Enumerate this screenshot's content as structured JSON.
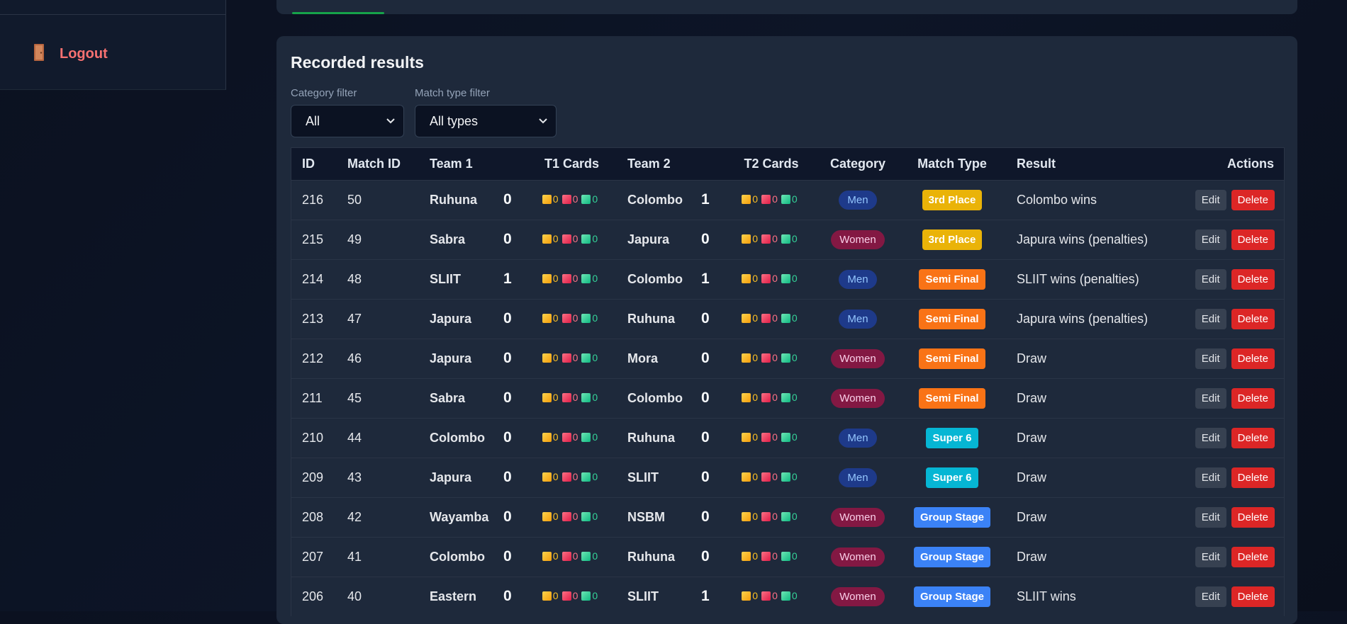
{
  "sidebar": {
    "logout_label": "Logout"
  },
  "results": {
    "title": "Recorded results",
    "category_filter": {
      "label": "Category filter",
      "value": "All"
    },
    "match_type_filter": {
      "label": "Match type filter",
      "value": "All types"
    },
    "columns": {
      "id": "ID",
      "match_id": "Match ID",
      "team1": "Team 1",
      "t1_cards": "T1 Cards",
      "team2": "Team 2",
      "t2_cards": "T2 Cards",
      "category": "Category",
      "match_type": "Match Type",
      "result": "Result",
      "actions": "Actions"
    },
    "edit_label": "Edit",
    "delete_label": "Delete",
    "rows": [
      {
        "id": "216",
        "match_id": "50",
        "team1": "Ruhuna",
        "score1": "0",
        "t1_yellow": "0",
        "t1_red": "0",
        "t1_green": "0",
        "team2": "Colombo",
        "score2": "1",
        "t2_yellow": "0",
        "t2_red": "0",
        "t2_green": "0",
        "category": "Men",
        "match_type": "3rd Place",
        "result": "Colombo wins"
      },
      {
        "id": "215",
        "match_id": "49",
        "team1": "Sabra",
        "score1": "0",
        "t1_yellow": "0",
        "t1_red": "0",
        "t1_green": "0",
        "team2": "Japura",
        "score2": "0",
        "t2_yellow": "0",
        "t2_red": "0",
        "t2_green": "0",
        "category": "Women",
        "match_type": "3rd Place",
        "result": "Japura wins (penalties)"
      },
      {
        "id": "214",
        "match_id": "48",
        "team1": "SLIIT",
        "score1": "1",
        "t1_yellow": "0",
        "t1_red": "0",
        "t1_green": "0",
        "team2": "Colombo",
        "score2": "1",
        "t2_yellow": "0",
        "t2_red": "0",
        "t2_green": "0",
        "category": "Men",
        "match_type": "Semi Final",
        "result": "SLIIT wins (penalties)"
      },
      {
        "id": "213",
        "match_id": "47",
        "team1": "Japura",
        "score1": "0",
        "t1_yellow": "0",
        "t1_red": "0",
        "t1_green": "0",
        "team2": "Ruhuna",
        "score2": "0",
        "t2_yellow": "0",
        "t2_red": "0",
        "t2_green": "0",
        "category": "Men",
        "match_type": "Semi Final",
        "result": "Japura wins (penalties)"
      },
      {
        "id": "212",
        "match_id": "46",
        "team1": "Japura",
        "score1": "0",
        "t1_yellow": "0",
        "t1_red": "0",
        "t1_green": "0",
        "team2": "Mora",
        "score2": "0",
        "t2_yellow": "0",
        "t2_red": "0",
        "t2_green": "0",
        "category": "Women",
        "match_type": "Semi Final",
        "result": "Draw"
      },
      {
        "id": "211",
        "match_id": "45",
        "team1": "Sabra",
        "score1": "0",
        "t1_yellow": "0",
        "t1_red": "0",
        "t1_green": "0",
        "team2": "Colombo",
        "score2": "0",
        "t2_yellow": "0",
        "t2_red": "0",
        "t2_green": "0",
        "category": "Women",
        "match_type": "Semi Final",
        "result": "Draw"
      },
      {
        "id": "210",
        "match_id": "44",
        "team1": "Colombo",
        "score1": "0",
        "t1_yellow": "0",
        "t1_red": "0",
        "t1_green": "0",
        "team2": "Ruhuna",
        "score2": "0",
        "t2_yellow": "0",
        "t2_red": "0",
        "t2_green": "0",
        "category": "Men",
        "match_type": "Super 6",
        "result": "Draw"
      },
      {
        "id": "209",
        "match_id": "43",
        "team1": "Japura",
        "score1": "0",
        "t1_yellow": "0",
        "t1_red": "0",
        "t1_green": "0",
        "team2": "SLIIT",
        "score2": "0",
        "t2_yellow": "0",
        "t2_red": "0",
        "t2_green": "0",
        "category": "Men",
        "match_type": "Super 6",
        "result": "Draw"
      },
      {
        "id": "208",
        "match_id": "42",
        "team1": "Wayamba",
        "score1": "0",
        "t1_yellow": "0",
        "t1_red": "0",
        "t1_green": "0",
        "team2": "NSBM",
        "score2": "0",
        "t2_yellow": "0",
        "t2_red": "0",
        "t2_green": "0",
        "category": "Women",
        "match_type": "Group Stage",
        "result": "Draw"
      },
      {
        "id": "207",
        "match_id": "41",
        "team1": "Colombo",
        "score1": "0",
        "t1_yellow": "0",
        "t1_red": "0",
        "t1_green": "0",
        "team2": "Ruhuna",
        "score2": "0",
        "t2_yellow": "0",
        "t2_red": "0",
        "t2_green": "0",
        "category": "Women",
        "match_type": "Group Stage",
        "result": "Draw"
      },
      {
        "id": "206",
        "match_id": "40",
        "team1": "Eastern",
        "score1": "0",
        "t1_yellow": "0",
        "t1_red": "0",
        "t1_green": "0",
        "team2": "SLIIT",
        "score2": "1",
        "t2_yellow": "0",
        "t2_red": "0",
        "t2_green": "0",
        "category": "Women",
        "match_type": "Group Stage",
        "result": "SLIIT wins"
      }
    ]
  }
}
